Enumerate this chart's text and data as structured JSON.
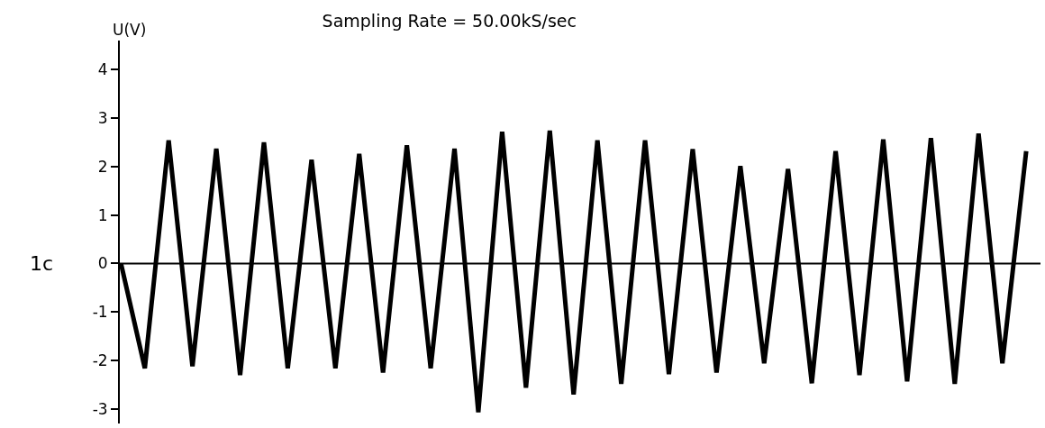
{
  "chart_data": {
    "type": "line",
    "title": "Sampling Rate = 50.00kS/sec",
    "ylabel": "U(V)",
    "annotations": [
      "1c"
    ],
    "categories": [
      null,
      null,
      null,
      null,
      null,
      null,
      null,
      null,
      null,
      null,
      null,
      null,
      null,
      null,
      null,
      null,
      null,
      null,
      null,
      null,
      null,
      null,
      null,
      null,
      null,
      null,
      null,
      null,
      null,
      null,
      null,
      null,
      null,
      null,
      null,
      null,
      null,
      null,
      null
    ],
    "series": [
      {
        "color": "#000000",
        "values": [
          0.0,
          -2.16,
          2.54,
          -2.12,
          2.37,
          -2.3,
          2.5,
          -2.16,
          2.14,
          -2.16,
          2.26,
          -2.25,
          2.44,
          -2.16,
          2.37,
          -3.07,
          2.72,
          -2.56,
          2.74,
          -2.7,
          2.54,
          -2.48,
          2.54,
          -2.28,
          2.36,
          -2.25,
          2.01,
          -2.06,
          1.95,
          -2.47,
          2.32,
          -2.3,
          2.56,
          -2.43,
          2.59,
          -2.48,
          2.68,
          -2.06,
          2.32
        ]
      }
    ],
    "ylim": [
      -3.3,
      4.6
    ],
    "yticks": [
      -3,
      -2,
      -1,
      0,
      1,
      2,
      3,
      4
    ],
    "ref_lines": [
      {
        "axis": "y",
        "value": 0,
        "color": "#000000"
      }
    ],
    "tick_labels": "y",
    "legend": false,
    "marker": "none",
    "line_style": "solid"
  }
}
